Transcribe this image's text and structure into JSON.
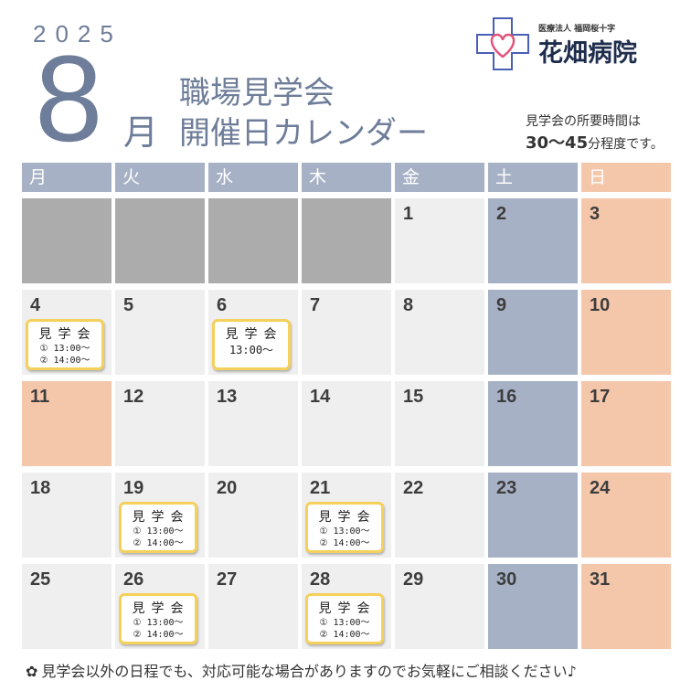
{
  "header": {
    "year": "2025",
    "month_number": "8",
    "month_kanji": "月",
    "title_line1": "職場見学会",
    "title_line2": "開催日カレンダー",
    "duration_line1": "見学会の所要時間は",
    "duration_num": "30〜45",
    "duration_unit": "分程度です。"
  },
  "logo": {
    "corp": "医療法人 福岡桜十字",
    "name": "花畑病院",
    "icon": "cross-heart-icon",
    "color": "#4a5fb5",
    "heart_color": "#e0557a"
  },
  "weekdays": [
    "月",
    "火",
    "水",
    "木",
    "金",
    "土",
    "日"
  ],
  "colors": {
    "header_weekday": "#a7b1c5",
    "header_sunday": "#f4c7ab",
    "cell_weekday": "#efefef",
    "cell_blank": "#acacac",
    "cell_saturday": "#a7b1c5",
    "cell_sunday_holiday": "#f4c7ab",
    "tour_border": "#f5d05a"
  },
  "tour_label": "見学会",
  "cells": [
    {
      "type": "blank"
    },
    {
      "type": "blank"
    },
    {
      "type": "blank"
    },
    {
      "type": "blank"
    },
    {
      "day": "1",
      "type": "weekday"
    },
    {
      "day": "2",
      "type": "sat"
    },
    {
      "day": "3",
      "type": "sun"
    },
    {
      "day": "4",
      "type": "weekday",
      "tour": [
        "① 13:00〜",
        "② 14:00〜"
      ]
    },
    {
      "day": "5",
      "type": "weekday"
    },
    {
      "day": "6",
      "type": "weekday",
      "tour": [
        "13:00〜"
      ]
    },
    {
      "day": "7",
      "type": "weekday"
    },
    {
      "day": "8",
      "type": "weekday"
    },
    {
      "day": "9",
      "type": "sat"
    },
    {
      "day": "10",
      "type": "sun"
    },
    {
      "day": "11",
      "type": "holiday"
    },
    {
      "day": "12",
      "type": "weekday"
    },
    {
      "day": "13",
      "type": "weekday"
    },
    {
      "day": "14",
      "type": "weekday"
    },
    {
      "day": "15",
      "type": "weekday"
    },
    {
      "day": "16",
      "type": "sat"
    },
    {
      "day": "17",
      "type": "sun"
    },
    {
      "day": "18",
      "type": "weekday"
    },
    {
      "day": "19",
      "type": "weekday",
      "tour": [
        "① 13:00〜",
        "② 14:00〜"
      ]
    },
    {
      "day": "20",
      "type": "weekday"
    },
    {
      "day": "21",
      "type": "weekday",
      "tour": [
        "① 13:00〜",
        "② 14:00〜"
      ]
    },
    {
      "day": "22",
      "type": "weekday"
    },
    {
      "day": "23",
      "type": "sat"
    },
    {
      "day": "24",
      "type": "sun"
    },
    {
      "day": "25",
      "type": "weekday"
    },
    {
      "day": "26",
      "type": "weekday",
      "tour": [
        "① 13:00〜",
        "② 14:00〜"
      ]
    },
    {
      "day": "27",
      "type": "weekday"
    },
    {
      "day": "28",
      "type": "weekday",
      "tour": [
        "① 13:00〜",
        "② 14:00〜"
      ]
    },
    {
      "day": "29",
      "type": "weekday"
    },
    {
      "day": "30",
      "type": "sat"
    },
    {
      "day": "31",
      "type": "sun"
    }
  ],
  "footer": {
    "icon": "flower-icon",
    "text": "見学会以外の日程でも、対応可能な場合がありますのでお気軽にご相談ください♪"
  }
}
